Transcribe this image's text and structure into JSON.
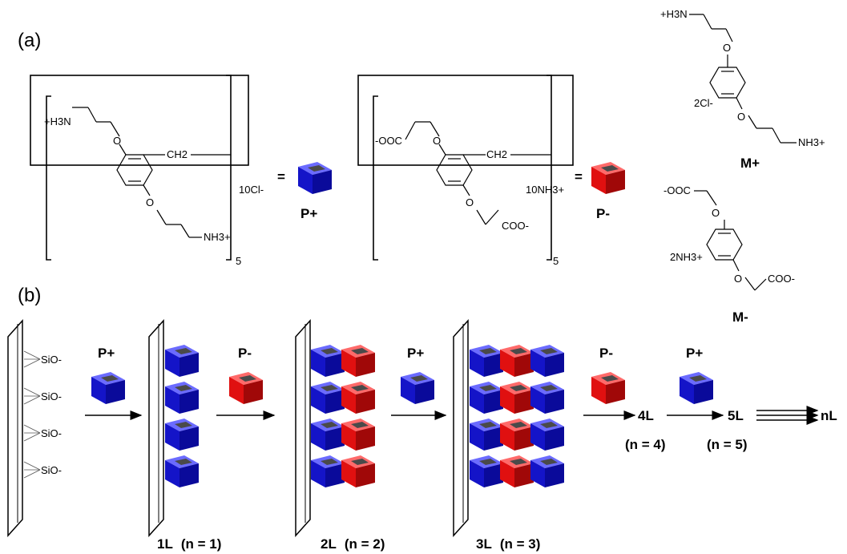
{
  "panel_a": {
    "label": "(a)",
    "p_plus": {
      "chain_top": "+H3N",
      "chain_bottom": "NH3+",
      "ch2": "CH2",
      "counterion": "10Cl-",
      "repeat": "5",
      "equals": "=",
      "name": "P+"
    },
    "p_minus": {
      "chain_top": "-OOC",
      "chain_bottom": "COO-",
      "ch2": "CH2",
      "counterion": "10NH3+",
      "repeat": "5",
      "equals": "=",
      "name": "P-"
    },
    "m_plus": {
      "top": "+H3N",
      "bottom": "NH3+",
      "counterion": "2Cl-",
      "name": "M+"
    },
    "m_minus": {
      "top": "-OOC",
      "bottom": "COO-",
      "counterion": "2NH3+",
      "name": "M-"
    }
  },
  "panel_b": {
    "label": "(b)",
    "surface_group": "SiO-",
    "steps": [
      "P+",
      "P-",
      "P+",
      "P-",
      "P+"
    ],
    "layer_labels": [
      "1L",
      "2L",
      "3L"
    ],
    "layer_n": [
      "(n = 1)",
      "(n = 2)",
      "(n = 3)"
    ],
    "later_layers": [
      "4L",
      "5L",
      "nL"
    ],
    "later_n": [
      "(n = 4)",
      "(n = 5)"
    ]
  },
  "colors": {
    "p_plus": "#1a1ad6",
    "p_minus": "#e01010",
    "cavity": "#4a4a4a"
  }
}
